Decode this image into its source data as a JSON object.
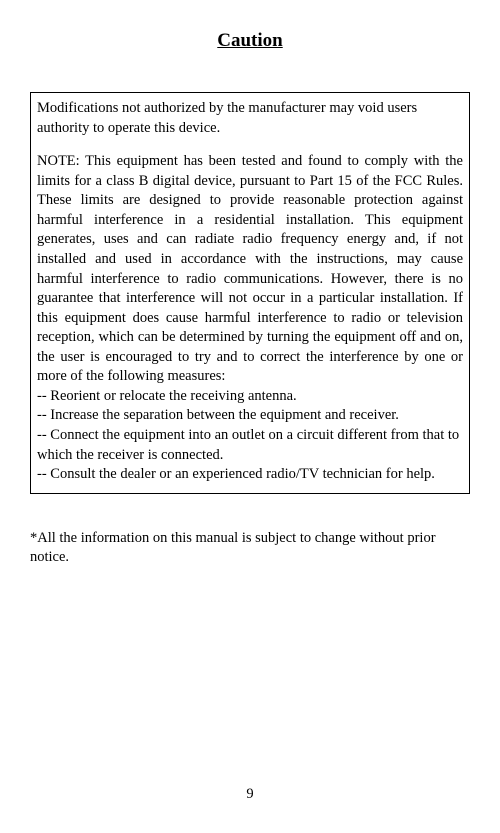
{
  "page": {
    "title": "Caution",
    "page_number": "9",
    "background_color": "#ffffff",
    "text_color": "#000000",
    "border_color": "#000000",
    "font_family": "Times New Roman",
    "title_fontsize": 19,
    "body_fontsize": 14.5
  },
  "box": {
    "intro": "Modifications not authorized by the manufacturer may void users authority to operate this device.",
    "note": "NOTE: This equipment has been tested and found to comply with the limits for a class B digital device, pursuant to Part 15 of the FCC Rules. These limits are designed to provide reasonable protection against harmful interference in a residential installation. This equipment generates, uses and can radiate radio frequency energy and, if not installed and used in accordance with the instructions, may cause harmful interference to radio communications. However, there is no guarantee that interference will not occur in a particular installation. If this equipment does cause harmful interference to radio or television reception, which can be determined by turning the equipment off and on, the user is encouraged to try and to correct the interference by one or more of the following measures:",
    "bullets": {
      "b1": "-- Reorient or relocate the receiving antenna.",
      "b2": "-- Increase the separation between the equipment and receiver.",
      "b3": "-- Connect the equipment into an outlet on a circuit different from that to which the receiver is connected.",
      "b4": "-- Consult the dealer or an experienced radio/TV technician for help."
    }
  },
  "footnote": "*All the information on this manual is subject to change without prior notice."
}
